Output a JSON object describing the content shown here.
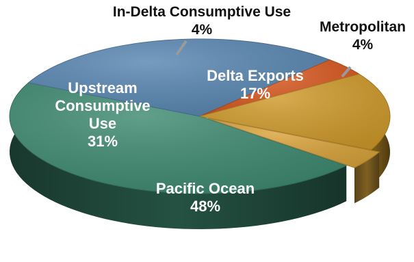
{
  "chart_data": {
    "type": "pie",
    "style": "3d-exploded",
    "title": "",
    "slices": [
      {
        "name": "Pacific Ocean",
        "value": 48,
        "label": "48%",
        "color": "#3e8a70"
      },
      {
        "name": "Upstream Consumptive Use",
        "value": 31,
        "label": "31%",
        "color": "#5886b1"
      },
      {
        "name": "In-Delta Consumptive Use",
        "value": 4,
        "label": "4%",
        "color": "#d8581f"
      },
      {
        "name": "Delta Exports",
        "value": 17,
        "label": "17%",
        "color": "#cf9a2a"
      },
      {
        "name": "Metropolitan",
        "value": 4,
        "label": "4%",
        "color": "#d9a33a",
        "exploded": true
      }
    ],
    "labels": {
      "pacific": {
        "name": "Pacific Ocean",
        "pct": "48%"
      },
      "upstream": {
        "line1": "Upstream",
        "line2": "Consumptive",
        "line3": "Use",
        "pct": "31%"
      },
      "indelta": {
        "name": "In-Delta Consumptive Use",
        "pct": "4%"
      },
      "exports": {
        "name": "Delta Exports",
        "pct": "17%"
      },
      "metro": {
        "name": "Metropolitan",
        "pct": "4%"
      }
    }
  }
}
